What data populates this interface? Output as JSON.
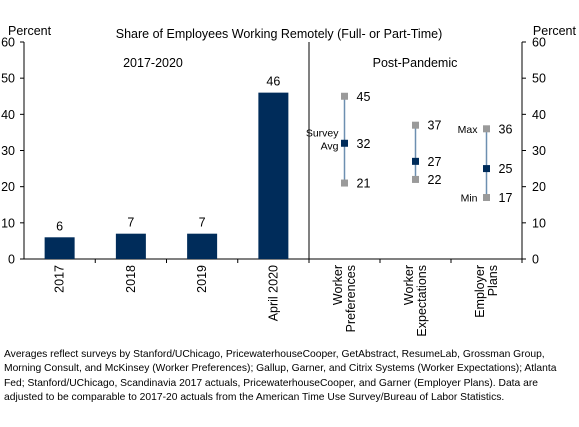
{
  "chart_data": {
    "type": "bar",
    "title": "Share of Employees Working Remotely (Full- or Part-Time)",
    "ylabel_left": "Percent",
    "ylabel_right": "Percent",
    "ylim": [
      0,
      60
    ],
    "yticks": [
      0,
      10,
      20,
      30,
      40,
      50,
      60
    ],
    "grid": false,
    "bar_color": "#002c5a",
    "range_color": "#6d8fb0",
    "survey_avg_color": "#002c5a",
    "min_max_color": "#9a9a9a",
    "left_panel": {
      "label": "2017-2020",
      "categories": [
        "2017",
        "2018",
        "2019",
        "April 2020"
      ],
      "values": [
        6,
        7,
        7,
        46
      ]
    },
    "right_panel": {
      "label": "Post-Pandemic",
      "categories": [
        "Worker Preferences",
        "Worker Expectations",
        "Employer Plans"
      ],
      "tick_lines": [
        [
          "Worker",
          "Preferences"
        ],
        [
          "Worker",
          "Expectations"
        ],
        [
          "Employer",
          "Plans"
        ]
      ],
      "series": [
        {
          "name": "Max",
          "values": [
            45,
            37,
            36
          ]
        },
        {
          "name": "Survey Avg",
          "values": [
            32,
            27,
            25
          ]
        },
        {
          "name": "Min",
          "values": [
            21,
            22,
            17
          ]
        }
      ],
      "max_labels": [
        "45",
        "37",
        "36"
      ],
      "avg_labels": [
        "32",
        "27",
        "25"
      ],
      "min_labels": [
        "21",
        "22",
        "17"
      ],
      "annotations": {
        "survey_avg": [
          "Survey",
          "Avg"
        ],
        "max": "Max",
        "min": "Min"
      }
    }
  },
  "note": "Averages reflect surveys by Stanford/UChicago, PricewaterhouseCooper, GetAbstract, ResumeLab, Grossman Group, Morning Consult, and McKinsey (Worker Preferences); Gallup, Garner, and Citrix Systems (Worker Expectations); Atlanta Fed; Stanford/UChicago, Scandinavia 2017 actuals, PricewaterhouseCooper, and Garner (Employer Plans). Data are adjusted to be comparable to 2017-20 actuals from the American Time Use Survey/Bureau of Labor Statistics."
}
